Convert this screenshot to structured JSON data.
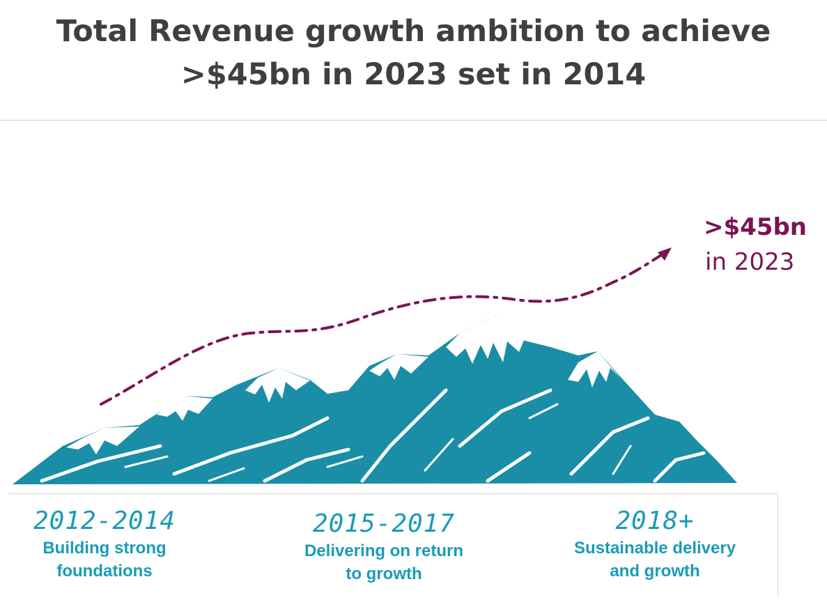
{
  "title": {
    "line1": "Total Revenue growth ambition to achieve",
    "line2": ">$45bn in 2023 set in 2014"
  },
  "target": {
    "value": ">$45bn",
    "year": "in 2023"
  },
  "phases": [
    {
      "years": "2012-2014",
      "line1": "Building strong",
      "line2": "foundations"
    },
    {
      "years": "2015-2017",
      "line1": "Delivering on return",
      "line2": "to growth"
    },
    {
      "years": "2018+",
      "line1": "Sustainable delivery",
      "line2": "and growth"
    }
  ],
  "colors": {
    "mountain": "#1a8ea6",
    "snow": "#ffffff",
    "trend": "#7a1455",
    "phase_text": "#1a9bb6",
    "title_text": "#3f3f3f"
  },
  "icons": {
    "mountains": "mountain-range-illustration",
    "trend": "dash-dot-trend-arrow"
  }
}
